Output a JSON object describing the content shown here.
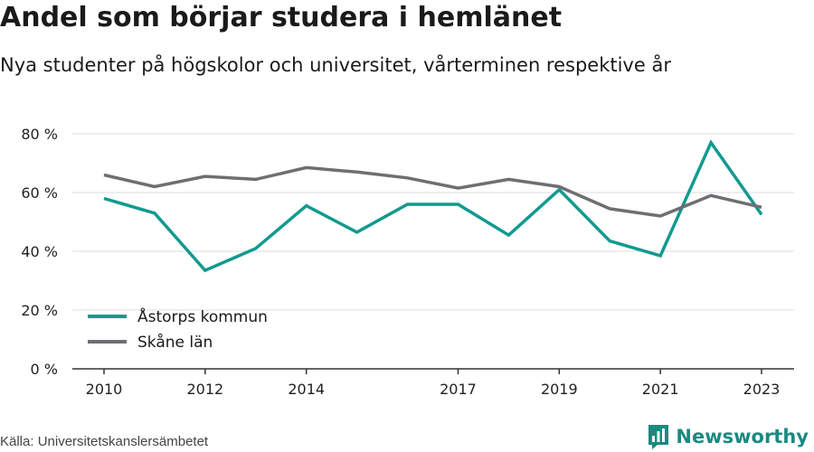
{
  "title": "Andel som börjar studera i hemlänet",
  "subtitle": "Nya studenter på högskolor och universitet, vårterminen respektive år",
  "source": "Källa: Universitetskanslersämbetet",
  "brand": {
    "name": "Newsworthy",
    "icon": "newsworthy-logo-icon"
  },
  "colors": {
    "accent": "#119a8f",
    "secondary": "#6f6e72",
    "grid": "#dddddd",
    "axis": "#333333",
    "brand": "#1a8a80"
  },
  "chart_data": {
    "type": "line",
    "x": [
      2010,
      2011,
      2012,
      2013,
      2014,
      2015,
      2016,
      2017,
      2018,
      2019,
      2020,
      2021,
      2022,
      2023
    ],
    "x_tick_labels": [
      "2010",
      "2012",
      "2014",
      "2017",
      "2019",
      "2021",
      "2023"
    ],
    "y_tick_labels": [
      "0 %",
      "20 %",
      "40 %",
      "60 %",
      "80 %"
    ],
    "ylim": [
      0,
      80
    ],
    "grid": true,
    "legend_position": "bottom-left",
    "series": [
      {
        "name": "Åstorps kommun",
        "color": "#119a8f",
        "values": [
          58,
          53,
          33.5,
          41,
          55.5,
          46.5,
          56,
          56,
          45.5,
          61,
          43.5,
          38.5,
          77,
          52.5
        ]
      },
      {
        "name": "Skåne län",
        "color": "#6f6e72",
        "values": [
          66,
          62,
          65.5,
          64.5,
          68.5,
          67,
          65,
          61.5,
          64.5,
          62,
          54.5,
          52,
          59,
          55
        ]
      }
    ]
  }
}
